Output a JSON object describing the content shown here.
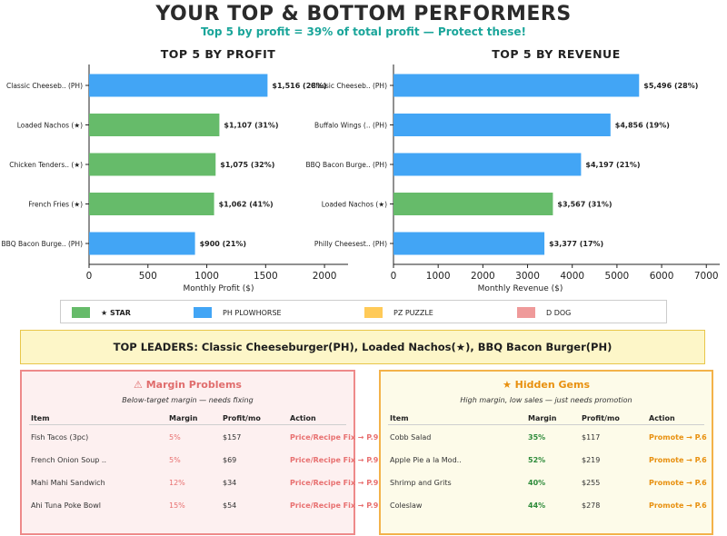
{
  "header": {
    "title": "YOUR TOP & BOTTOM PERFORMERS",
    "subtitle": "Top 5 by profit = 39% of total profit — Protect these!"
  },
  "colors": {
    "star": "#66bb6a",
    "plowhorse": "#42a5f5",
    "puzzle": "#ffca58",
    "dog": "#ef9a9a"
  },
  "chart_data": [
    {
      "type": "bar",
      "orientation": "horizontal",
      "title": "TOP 5 BY PROFIT",
      "xlabel": "Monthly Profit ($)",
      "xlim": [
        0,
        2200
      ],
      "xticks": [
        0,
        500,
        1000,
        1500,
        2000
      ],
      "categories": [
        "Classic Cheeseb.. (PH)",
        "Loaded Nachos (★)",
        "Chicken Tenders.. (★)",
        "French Fries (★)",
        "BBQ Bacon Burge.. (PH)"
      ],
      "values": [
        1516,
        1107,
        1075,
        1062,
        900
      ],
      "classes": [
        "plowhorse",
        "star",
        "star",
        "star",
        "plowhorse"
      ],
      "data_labels": [
        "$1,516 (28%)",
        "$1,107 (31%)",
        "$1,075 (32%)",
        "$1,062 (41%)",
        "$900 (21%)"
      ]
    },
    {
      "type": "bar",
      "orientation": "horizontal",
      "title": "TOP 5 BY REVENUE",
      "xlabel": "Monthly Revenue ($)",
      "xlim": [
        0,
        7300
      ],
      "xticks": [
        0,
        1000,
        2000,
        3000,
        4000,
        5000,
        6000,
        7000
      ],
      "categories": [
        "Classic Cheeseb.. (PH)",
        "Buffalo Wings (.. (PH)",
        "BBQ Bacon Burge.. (PH)",
        "Loaded Nachos (★)",
        "Philly Cheesest.. (PH)"
      ],
      "values": [
        5496,
        4856,
        4197,
        3567,
        3377
      ],
      "classes": [
        "plowhorse",
        "plowhorse",
        "plowhorse",
        "star",
        "plowhorse"
      ],
      "data_labels": [
        "$5,496 (28%)",
        "$4,856 (19%)",
        "$4,197 (21%)",
        "$3,567 (31%)",
        "$3,377 (17%)"
      ]
    }
  ],
  "legend": [
    {
      "label": "★ STAR",
      "key": "star",
      "bold": true
    },
    {
      "label": "PH PLOWHORSE",
      "key": "plowhorse",
      "bold": false
    },
    {
      "label": "PZ PUZZLE",
      "key": "puzzle",
      "bold": false
    },
    {
      "label": "D DOG",
      "key": "dog",
      "bold": false
    }
  ],
  "leaders": "TOP LEADERS: Classic Cheeseburger(PH), Loaded Nachos(★), BBQ Bacon Burger(PH)",
  "margin_problems": {
    "title": "⚠ Margin Problems",
    "subtitle": "Below-target margin — needs fixing",
    "headers": {
      "item": "Item",
      "margin": "Margin",
      "profit": "Profit/mo",
      "action": "Action"
    },
    "rows": [
      {
        "item": "Fish Tacos (3pc)",
        "margin": "5%",
        "profit": "$157",
        "action": "Price/Recipe Fix → P.9"
      },
      {
        "item": "French Onion Soup ..",
        "margin": "5%",
        "profit": "$69",
        "action": "Price/Recipe Fix → P.9"
      },
      {
        "item": "Mahi Mahi Sandwich",
        "margin": "12%",
        "profit": "$34",
        "action": "Price/Recipe Fix → P.9"
      },
      {
        "item": "Ahi Tuna Poke Bowl",
        "margin": "15%",
        "profit": "$54",
        "action": "Price/Recipe Fix → P.9"
      }
    ]
  },
  "hidden_gems": {
    "title": "★ Hidden Gems",
    "subtitle": "High margin, low sales — just needs promotion",
    "headers": {
      "item": "Item",
      "margin": "Margin",
      "profit": "Profit/mo",
      "action": "Action"
    },
    "rows": [
      {
        "item": "Cobb Salad",
        "margin": "35%",
        "profit": "$117",
        "action": "Promote → P.6"
      },
      {
        "item": "Apple Pie a la Mod..",
        "margin": "52%",
        "profit": "$219",
        "action": "Promote → P.6"
      },
      {
        "item": "Shrimp and Grits",
        "margin": "40%",
        "profit": "$255",
        "action": "Promote → P.6"
      },
      {
        "item": "Coleslaw",
        "margin": "44%",
        "profit": "$278",
        "action": "Promote → P.6"
      }
    ]
  }
}
